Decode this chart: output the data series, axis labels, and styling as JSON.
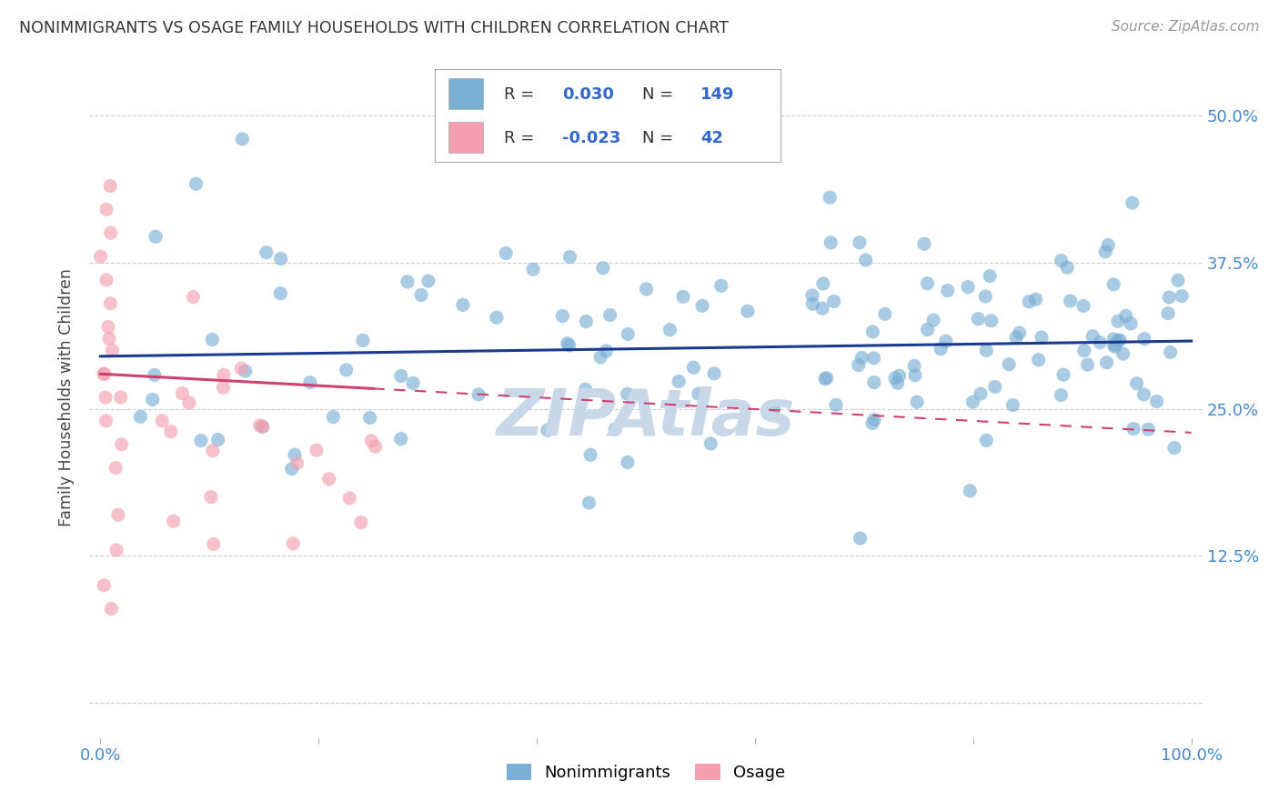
{
  "title": "NONIMMIGRANTS VS OSAGE FAMILY HOUSEHOLDS WITH CHILDREN CORRELATION CHART",
  "source": "Source: ZipAtlas.com",
  "ylabel": "Family Households with Children",
  "background_color": "#ffffff",
  "blue_dot_color": "#7bafd4",
  "pink_dot_color": "#f4a0b0",
  "blue_line_color": "#1a3a8f",
  "pink_line_color": "#d04070",
  "grid_color": "#cccccc",
  "watermark_color": "#c8d8e8",
  "ytick_color": "#4488cc",
  "xtick_color": "#4488cc",
  "legend_border_color": "#aaaaaa",
  "legend_text_color": "#333333",
  "legend_value_color": "#3366cc",
  "title_color": "#333333",
  "source_color": "#999999",
  "ylabel_color": "#444444"
}
